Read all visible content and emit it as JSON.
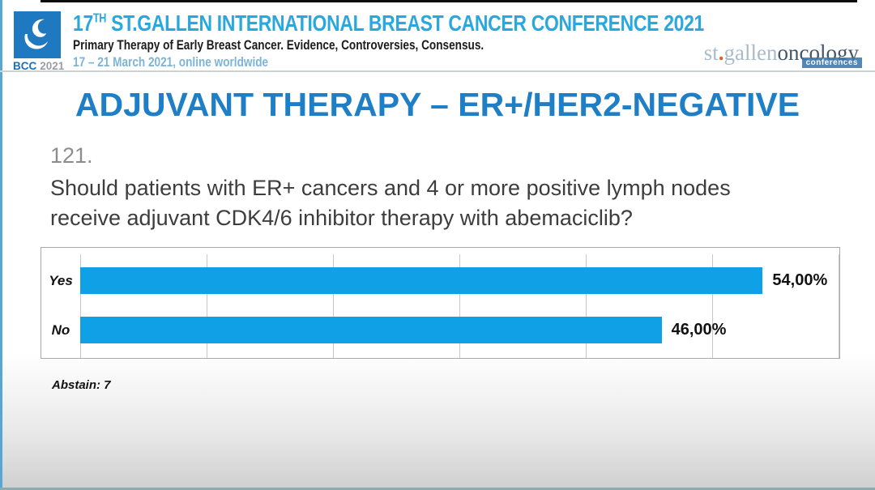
{
  "header": {
    "logo_badge_bcc": "BCC",
    "logo_badge_year": "2021",
    "title_prefix": "17",
    "title_sup": "TH",
    "title_rest": " ST.GALLEN INTERNATIONAL BREAST CANCER CONFERENCE 2021",
    "subtitle": "Primary Therapy of Early Breast Cancer. Evidence, Controversies, Consensus.",
    "dates": "17 – 21 March 2021, online worldwide",
    "org_logo": {
      "part1": "st",
      "dot": ".",
      "part2": "gallen",
      "part3": "oncology",
      "badge": "conferences"
    }
  },
  "slide": {
    "title": "ADJUVANT THERAPY – ER+/HER2-NEGATIVE",
    "question_number": "121.",
    "question_line1": "Should patients with ER+ cancers and 4 or more positive lymph nodes",
    "question_line2": "receive adjuvant CDK4/6 inhibitor therapy with abemaciclib?",
    "abstain_note": "Abstain: 7"
  },
  "chart_data": {
    "type": "bar",
    "orientation": "horizontal",
    "title": "",
    "categories": [
      "Yes",
      "No"
    ],
    "values": [
      54,
      46
    ],
    "value_labels": [
      "54,00%",
      "46,00%"
    ],
    "xlim": [
      0,
      60
    ],
    "gridline_step": 10,
    "grid": true,
    "legend": false,
    "bar_color": "#0fa0e6"
  },
  "icons": {
    "bcc_logo": "droplet-logo"
  },
  "colors": {
    "header_title": "#29a8e0",
    "slide_title": "#1e7fc6",
    "bar_blue": "#0fa0e6",
    "dates_blue": "#7eb5d6",
    "question_gray": "#3d3d3d",
    "number_gray": "#8d8d8d",
    "logo_box_blue": "#1e79c0",
    "org_light": "#a9bccd",
    "org_dark": "#44566b",
    "org_badge_bg": "#3c78ad",
    "org_dot_orange": "#e0622a"
  }
}
